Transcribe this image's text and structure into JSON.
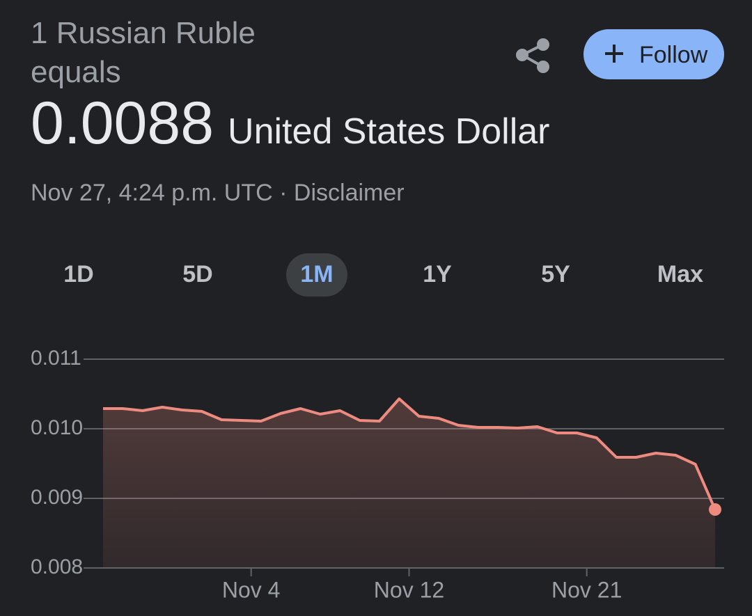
{
  "header": {
    "title": "1 Russian Ruble equals",
    "rate": "0.0088",
    "currency": "United States Dollar",
    "timestamp": "Nov 27, 4:24 p.m. UTC",
    "separator": "·",
    "disclaimer": "Disclaimer"
  },
  "actions": {
    "follow": "Follow"
  },
  "tabs": {
    "items": [
      "1D",
      "5D",
      "1M",
      "1Y",
      "5Y",
      "Max"
    ],
    "selected": "1M"
  },
  "chart_data": {
    "type": "line",
    "x": [
      0,
      1,
      2,
      3,
      4,
      5,
      6,
      7,
      8,
      9,
      10,
      11,
      12,
      13,
      14,
      15,
      16,
      17,
      18,
      19,
      20,
      21,
      22,
      23,
      24,
      25,
      26,
      27,
      28,
      29,
      30,
      31
    ],
    "values": [
      0.01029,
      0.01029,
      0.01026,
      0.01031,
      0.01027,
      0.01025,
      0.01013,
      0.01012,
      0.01011,
      0.01022,
      0.01029,
      0.01021,
      0.01026,
      0.01012,
      0.01011,
      0.01043,
      0.01018,
      0.01015,
      0.01005,
      0.01002,
      0.01002,
      0.01001,
      0.01003,
      0.00994,
      0.00994,
      0.00987,
      0.00959,
      0.00959,
      0.00965,
      0.00962,
      0.00949,
      0.00884
    ],
    "color": "#ee8b80",
    "xlim": [
      0,
      31
    ],
    "xticks": [
      {
        "value": 7.5,
        "label": "Nov 4"
      },
      {
        "value": 15.5,
        "label": "Nov 12"
      },
      {
        "value": 24.5,
        "label": "Nov 21"
      }
    ],
    "ylim": [
      0.008,
      0.011
    ],
    "yticks": [
      0.011,
      {
        "value": 0.01,
        "label": "0.010"
      },
      0.009,
      0.008
    ],
    "grid": true
  }
}
